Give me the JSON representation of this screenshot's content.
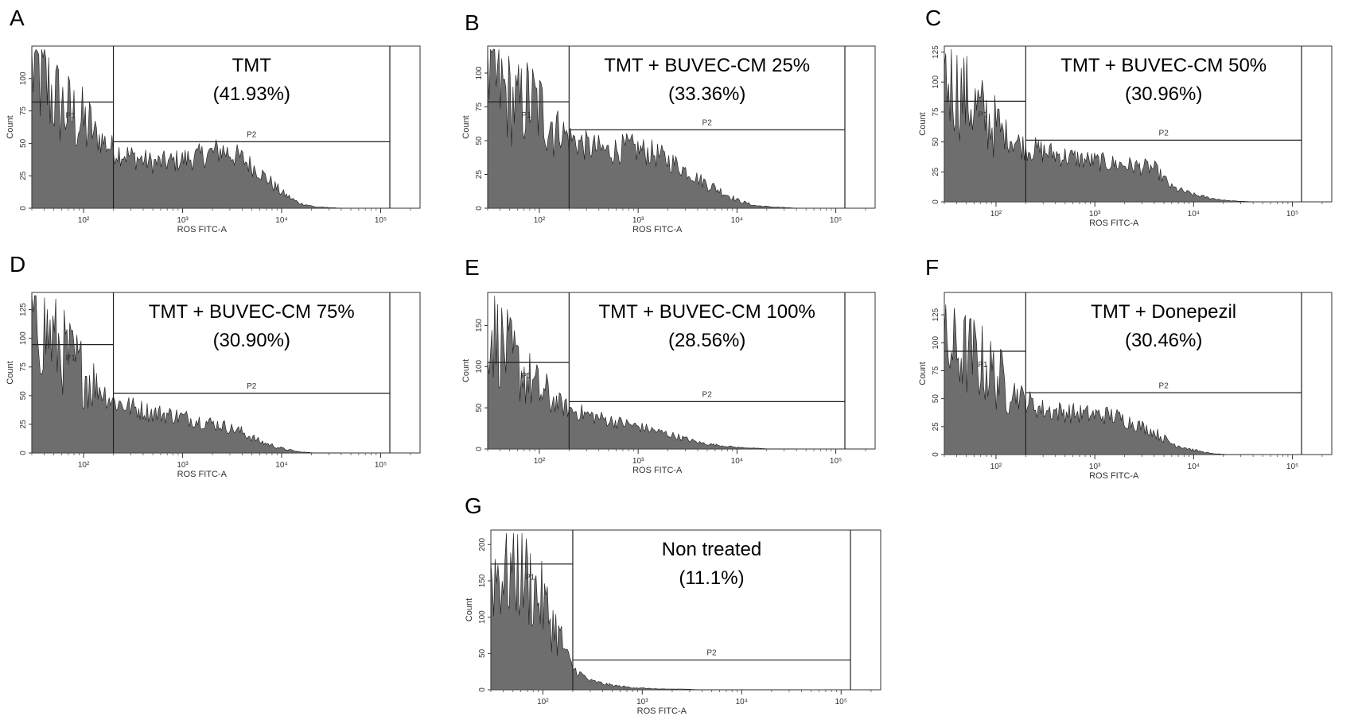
{
  "chart_data": [
    {
      "type": "histogram",
      "panel": "A",
      "title": "TMT",
      "percentage": "(41.93%)",
      "xlabel": "ROS FITC-A",
      "ylabel": "Count",
      "x_scale": "log",
      "xlim": [
        30,
        250000
      ],
      "ylim": [
        0,
        125
      ],
      "yticks": [
        0,
        25,
        50,
        75,
        100
      ],
      "xtick_labels": [
        "10²",
        "10³",
        "10⁴",
        "10⁵"
      ],
      "gates": [
        "P1",
        "P2"
      ],
      "x": [
        30,
        60,
        100,
        200,
        300,
        500,
        800,
        1500,
        2500,
        4000,
        6000,
        10000,
        15000,
        22000,
        40000
      ],
      "values": [
        110,
        78,
        65,
        45,
        40,
        35,
        36,
        40,
        45,
        38,
        28,
        12,
        4,
        1,
        0
      ]
    },
    {
      "type": "histogram",
      "panel": "B",
      "title": "TMT + BUVEC-CM 25%",
      "percentage": "(33.36%)",
      "xlabel": "ROS FITC-A",
      "ylabel": "Count",
      "x_scale": "log",
      "xlim": [
        30,
        250000
      ],
      "ylim": [
        0,
        120
      ],
      "yticks": [
        0,
        25,
        50,
        75,
        100
      ],
      "xtick_labels": [
        "10²",
        "10³",
        "10⁴",
        "10⁵"
      ],
      "gates": [
        "P1",
        "P2"
      ],
      "x": [
        30,
        60,
        80,
        200,
        300,
        500,
        800,
        1500,
        2500,
        4000,
        6000,
        10000,
        15000,
        22000,
        40000
      ],
      "values": [
        100,
        75,
        80,
        52,
        46,
        42,
        45,
        40,
        32,
        22,
        15,
        6,
        2,
        1,
        0
      ]
    },
    {
      "type": "histogram",
      "panel": "C",
      "title": "TMT + BUVEC-CM 50%",
      "percentage": "(30.96%)",
      "xlabel": "ROS FITC-A",
      "ylabel": "Count",
      "x_scale": "log",
      "xlim": [
        30,
        250000
      ],
      "ylim": [
        0,
        130
      ],
      "yticks": [
        0,
        25,
        50,
        75,
        100,
        125
      ],
      "xtick_labels": [
        "10²",
        "10³",
        "10⁴",
        "10⁵"
      ],
      "gates": [
        "P1",
        "P2"
      ],
      "x": [
        30,
        60,
        100,
        200,
        300,
        500,
        800,
        1500,
        2500,
        4000,
        6000,
        10000,
        15000,
        22000,
        40000
      ],
      "values": [
        105,
        80,
        62,
        45,
        42,
        38,
        35,
        32,
        30,
        28,
        12,
        6,
        3,
        1,
        0
      ]
    },
    {
      "type": "histogram",
      "panel": "D",
      "title": "TMT + BUVEC-CM 75%",
      "percentage": "(30.90%)",
      "xlabel": "ROS FITC-A",
      "ylabel": "Count",
      "x_scale": "log",
      "xlim": [
        30,
        250000
      ],
      "ylim": [
        0,
        140
      ],
      "yticks": [
        0,
        25,
        50,
        75,
        100,
        125
      ],
      "xtick_labels": [
        "10²",
        "10³",
        "10⁴",
        "10⁵"
      ],
      "gates": [
        "P1",
        "P2"
      ],
      "x": [
        30,
        60,
        100,
        200,
        300,
        500,
        800,
        1500,
        2500,
        4000,
        6000,
        10000,
        15000,
        22000,
        40000
      ],
      "values": [
        120,
        90,
        70,
        45,
        40,
        35,
        33,
        28,
        24,
        18,
        10,
        4,
        1,
        0,
        0
      ]
    },
    {
      "type": "histogram",
      "panel": "E",
      "title": "TMT + BUVEC-CM 100%",
      "percentage": "(28.56%)",
      "xlabel": "ROS FITC-A",
      "ylabel": "Count",
      "x_scale": "log",
      "xlim": [
        30,
        250000
      ],
      "ylim": [
        0,
        190
      ],
      "yticks": [
        0,
        50,
        100,
        150
      ],
      "xtick_labels": [
        "10²",
        "10³",
        "10⁴",
        "10⁵"
      ],
      "gates": [
        "P1",
        "P2"
      ],
      "x": [
        30,
        60,
        100,
        200,
        300,
        500,
        800,
        1500,
        2500,
        4000,
        6000,
        10000,
        15000,
        22000,
        40000
      ],
      "values": [
        150,
        100,
        70,
        48,
        42,
        35,
        30,
        22,
        15,
        8,
        5,
        2,
        1,
        0,
        0
      ]
    },
    {
      "type": "histogram",
      "panel": "F",
      "title": "TMT + Donepezil",
      "percentage": "(30.46%)",
      "xlabel": "ROS FITC-A",
      "ylabel": "Count",
      "x_scale": "log",
      "xlim": [
        30,
        250000
      ],
      "ylim": [
        0,
        145
      ],
      "yticks": [
        0,
        25,
        50,
        75,
        100,
        125
      ],
      "xtick_labels": [
        "10²",
        "10³",
        "10⁴",
        "10⁵"
      ],
      "gates": [
        "P1",
        "P2"
      ],
      "x": [
        30,
        60,
        100,
        200,
        300,
        500,
        800,
        1500,
        2500,
        4000,
        6000,
        10000,
        15000,
        22000,
        40000
      ],
      "values": [
        95,
        88,
        70,
        48,
        40,
        38,
        36,
        35,
        28,
        20,
        10,
        4,
        1,
        0,
        0
      ]
    },
    {
      "type": "histogram",
      "panel": "G",
      "title": "Non treated",
      "percentage": "(11.1%)",
      "xlabel": "ROS FITC-A",
      "ylabel": "Count",
      "x_scale": "log",
      "xlim": [
        30,
        250000
      ],
      "ylim": [
        0,
        220
      ],
      "yticks": [
        0,
        50,
        100,
        150,
        200
      ],
      "xtick_labels": [
        "10²",
        "10³",
        "10⁴",
        "10⁵"
      ],
      "gates": [
        "P1",
        "P2"
      ],
      "x": [
        30,
        60,
        100,
        150,
        200,
        300,
        500,
        800,
        1500,
        2500,
        4000,
        6000,
        10000
      ],
      "values": [
        160,
        165,
        120,
        70,
        30,
        12,
        6,
        3,
        1,
        1,
        0,
        0,
        0
      ]
    }
  ]
}
